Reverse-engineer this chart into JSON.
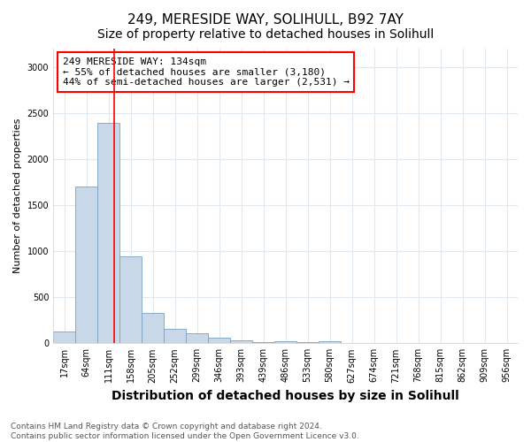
{
  "title": "249, MERESIDE WAY, SOLIHULL, B92 7AY",
  "subtitle": "Size of property relative to detached houses in Solihull",
  "xlabel": "Distribution of detached houses by size in Solihull",
  "ylabel": "Number of detached properties",
  "categories": [
    "17sqm",
    "64sqm",
    "111sqm",
    "158sqm",
    "205sqm",
    "252sqm",
    "299sqm",
    "346sqm",
    "393sqm",
    "439sqm",
    "486sqm",
    "533sqm",
    "580sqm",
    "627sqm",
    "674sqm",
    "721sqm",
    "768sqm",
    "815sqm",
    "862sqm",
    "909sqm",
    "956sqm"
  ],
  "values": [
    130,
    1700,
    2390,
    940,
    330,
    155,
    110,
    60,
    30,
    15,
    20,
    10,
    25,
    0,
    0,
    0,
    0,
    0,
    0,
    0,
    0
  ],
  "bar_color": "#c8d8e8",
  "bar_edge_color": "#7aa0be",
  "vline_color": "red",
  "vline_x": 2.25,
  "annotation_line1": "249 MERESIDE WAY: 134sqm",
  "annotation_line2": "← 55% of detached houses are smaller (3,180)",
  "annotation_line3": "44% of semi-detached houses are larger (2,531) →",
  "ylim": [
    0,
    3200
  ],
  "yticks": [
    0,
    500,
    1000,
    1500,
    2000,
    2500,
    3000
  ],
  "footnote1": "Contains HM Land Registry data © Crown copyright and database right 2024.",
  "footnote2": "Contains public sector information licensed under the Open Government Licence v3.0.",
  "bg_color": "#ffffff",
  "plot_bg_color": "#ffffff",
  "grid_color": "#e0e8f0",
  "title_fontsize": 11,
  "subtitle_fontsize": 10,
  "xlabel_fontsize": 10,
  "ylabel_fontsize": 8,
  "tick_fontsize": 7,
  "annot_fontsize": 8,
  "footnote_fontsize": 6.5
}
